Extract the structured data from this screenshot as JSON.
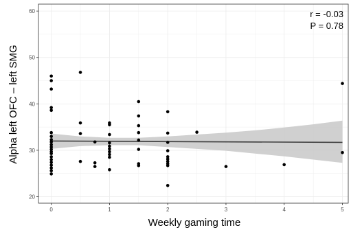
{
  "chart_data": {
    "type": "scatter",
    "title": "",
    "xlabel": "Weekly gaming time",
    "ylabel": "Alpha left OFC – left SMG",
    "xlim": [
      -0.22,
      5.1
    ],
    "ylim": [
      18.6,
      61.5
    ],
    "x_ticks": [
      0,
      1,
      2,
      3,
      4,
      5
    ],
    "y_ticks": [
      20,
      30,
      40,
      50,
      60
    ],
    "x_tick_labels": [
      "0",
      "1",
      "2",
      "3",
      "4",
      "5"
    ],
    "y_tick_labels": [
      "20",
      "30",
      "40",
      "50",
      "60"
    ],
    "grid": true,
    "annotations": [
      "r = -0.03",
      "P = 0.78"
    ],
    "regression": {
      "x": [
        0,
        5
      ],
      "y": [
        32.0,
        31.7
      ]
    },
    "confidence_band": {
      "x": [
        0,
        0.5,
        1,
        1.5,
        2,
        2.5,
        3,
        3.5,
        4,
        4.5,
        5
      ],
      "lower": [
        30.3,
        30.9,
        31.1,
        31.1,
        30.7,
        30.3,
        29.9,
        29.3,
        28.7,
        28.0,
        27.3
      ],
      "upper": [
        33.6,
        33.0,
        32.7,
        32.7,
        33.0,
        33.4,
        33.8,
        34.3,
        34.9,
        35.6,
        36.4
      ]
    },
    "colors": {
      "points": "#000000",
      "line": "#3f3f3f",
      "band": "#c8c8c8",
      "grid": "#ebebeb",
      "panel_border": "#333333"
    },
    "points": [
      {
        "x": 0,
        "y": 46.0
      },
      {
        "x": 0,
        "y": 45.0
      },
      {
        "x": 0,
        "y": 43.2
      },
      {
        "x": 0,
        "y": 39.2
      },
      {
        "x": 0,
        "y": 38.6
      },
      {
        "x": 0,
        "y": 33.8
      },
      {
        "x": 0,
        "y": 33.0
      },
      {
        "x": 0,
        "y": 32.3
      },
      {
        "x": 0,
        "y": 31.8
      },
      {
        "x": 0,
        "y": 31.2
      },
      {
        "x": 0,
        "y": 30.7
      },
      {
        "x": 0,
        "y": 30.2
      },
      {
        "x": 0,
        "y": 29.7
      },
      {
        "x": 0,
        "y": 29.3
      },
      {
        "x": 0,
        "y": 28.6
      },
      {
        "x": 0,
        "y": 28.0
      },
      {
        "x": 0,
        "y": 27.4
      },
      {
        "x": 0,
        "y": 26.8
      },
      {
        "x": 0,
        "y": 26.2
      },
      {
        "x": 0,
        "y": 25.6
      },
      {
        "x": 0,
        "y": 24.9
      },
      {
        "x": 0.5,
        "y": 46.8
      },
      {
        "x": 0.5,
        "y": 35.9
      },
      {
        "x": 0.5,
        "y": 33.6
      },
      {
        "x": 0.5,
        "y": 27.6
      },
      {
        "x": 0.75,
        "y": 31.8
      },
      {
        "x": 0.75,
        "y": 27.3
      },
      {
        "x": 0.75,
        "y": 26.5
      },
      {
        "x": 1,
        "y": 35.9
      },
      {
        "x": 1,
        "y": 35.5
      },
      {
        "x": 1,
        "y": 33.4
      },
      {
        "x": 1,
        "y": 31.6
      },
      {
        "x": 1,
        "y": 30.9
      },
      {
        "x": 1,
        "y": 30.3
      },
      {
        "x": 1,
        "y": 29.7
      },
      {
        "x": 1,
        "y": 29.1
      },
      {
        "x": 1,
        "y": 28.5
      },
      {
        "x": 1,
        "y": 25.8
      },
      {
        "x": 1.5,
        "y": 40.5
      },
      {
        "x": 1.5,
        "y": 37.4
      },
      {
        "x": 1.5,
        "y": 35.3
      },
      {
        "x": 1.5,
        "y": 33.8
      },
      {
        "x": 1.5,
        "y": 32.2
      },
      {
        "x": 1.5,
        "y": 30.2
      },
      {
        "x": 1.5,
        "y": 27.1
      },
      {
        "x": 1.5,
        "y": 26.7
      },
      {
        "x": 2,
        "y": 38.3
      },
      {
        "x": 2,
        "y": 33.7
      },
      {
        "x": 2,
        "y": 31.7
      },
      {
        "x": 2,
        "y": 29.9
      },
      {
        "x": 2,
        "y": 28.6
      },
      {
        "x": 2,
        "y": 28.1
      },
      {
        "x": 2,
        "y": 27.6
      },
      {
        "x": 2,
        "y": 27.1
      },
      {
        "x": 2,
        "y": 26.7
      },
      {
        "x": 2,
        "y": 22.4
      },
      {
        "x": 2.5,
        "y": 33.9
      },
      {
        "x": 3,
        "y": 26.5
      },
      {
        "x": 4,
        "y": 26.9
      },
      {
        "x": 5,
        "y": 44.4
      },
      {
        "x": 5,
        "y": 29.5
      }
    ]
  }
}
